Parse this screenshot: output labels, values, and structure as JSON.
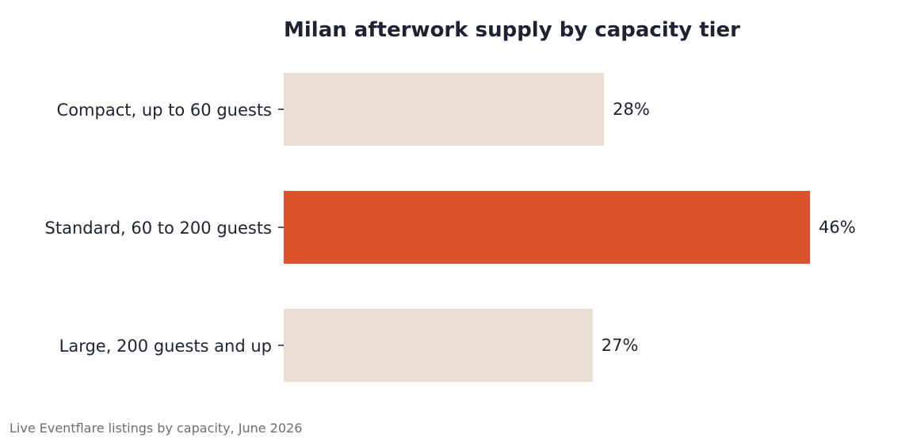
{
  "chart_data": {
    "type": "bar",
    "orientation": "horizontal",
    "title": "Milan afterwork supply by capacity tier",
    "categories": [
      "Compact, up to 60 guests",
      "Standard, 60 to 200 guests",
      "Large, 200 guests and up"
    ],
    "values": [
      28,
      46,
      27
    ],
    "value_labels": [
      "28%",
      "46%",
      "27%"
    ],
    "highlight_index": 1,
    "colors": {
      "default": "#e8ded4",
      "highlight": "#d9532c"
    },
    "xlabel": "",
    "ylabel": "",
    "grid": false,
    "legend": "none"
  },
  "source": "Live Eventflare listings by capacity, June 2026"
}
